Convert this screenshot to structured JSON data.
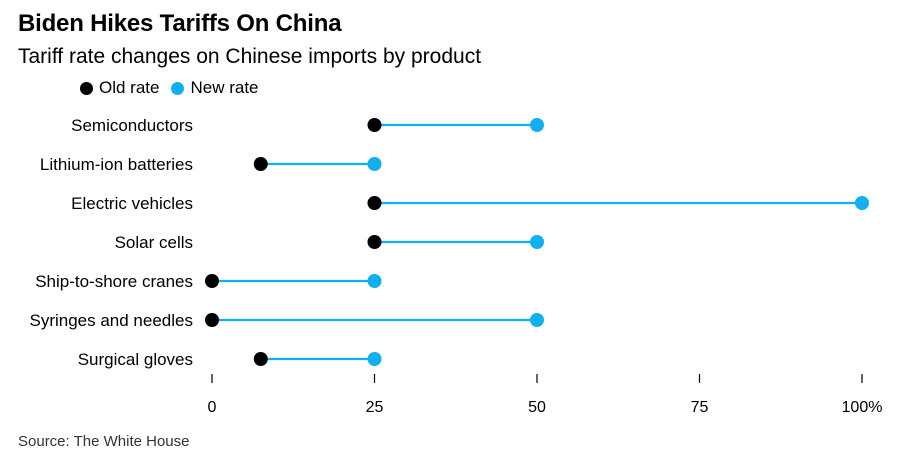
{
  "chart_data": {
    "type": "dot",
    "title": "Biden Hikes Tariffs On China",
    "subtitle": "Tariff rate changes on Chinese imports by product",
    "categories": [
      "Semiconductors",
      "Lithium-ion batteries",
      "Electric vehicles",
      "Solar cells",
      "Ship-to-shore cranes",
      "Syringes and needles",
      "Surgical gloves"
    ],
    "series": [
      {
        "name": "Old rate",
        "color": "#000000",
        "values": [
          25,
          7.5,
          25,
          25,
          0,
          0,
          7.5
        ]
      },
      {
        "name": "New rate",
        "color": "#10b0f0",
        "values": [
          50,
          25,
          100,
          50,
          25,
          50,
          25
        ]
      }
    ],
    "connector_color": "#10b0f0",
    "xlim": [
      0,
      100
    ],
    "xticks": [
      0,
      25,
      50,
      75,
      100
    ],
    "xtick_labels": [
      "0",
      "25",
      "50",
      "75",
      "100%"
    ],
    "grid": false,
    "legend_position": "top-left",
    "source": "Source: The White House"
  }
}
